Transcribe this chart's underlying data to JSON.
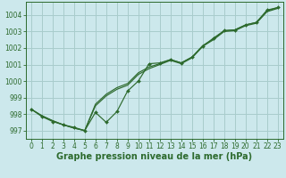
{
  "title": "Graphe pression niveau de la mer (hPa)",
  "background_color": "#cce8ec",
  "grid_color": "#a8cccc",
  "line_color": "#2d6a2d",
  "xlim": [
    -0.5,
    23.5
  ],
  "ylim": [
    996.5,
    1004.8
  ],
  "yticks": [
    997,
    998,
    999,
    1000,
    1001,
    1002,
    1003,
    1004
  ],
  "xticks": [
    0,
    1,
    2,
    3,
    4,
    5,
    6,
    7,
    8,
    9,
    10,
    11,
    12,
    13,
    14,
    15,
    16,
    17,
    18,
    19,
    20,
    21,
    22,
    23
  ],
  "line_smooth": {
    "x": [
      0,
      1,
      2,
      3,
      4,
      5,
      6,
      7,
      8,
      9,
      10,
      11,
      12,
      13,
      14,
      15,
      16,
      17,
      18,
      19,
      20,
      21,
      22,
      23
    ],
    "y": [
      998.3,
      997.9,
      997.6,
      997.35,
      997.15,
      997.0,
      998.6,
      999.2,
      999.6,
      999.85,
      1000.5,
      1000.85,
      1001.05,
      1001.3,
      1001.1,
      1001.45,
      1002.15,
      1002.55,
      1003.05,
      1003.1,
      1003.4,
      1003.55,
      1004.25,
      1004.45
    ]
  },
  "line_smooth2": {
    "x": [
      0,
      1,
      2,
      3,
      4,
      5,
      6,
      7,
      8,
      9,
      10,
      11,
      12,
      13,
      14,
      15,
      16,
      17,
      18,
      19,
      20,
      21,
      22,
      23
    ],
    "y": [
      998.3,
      997.9,
      997.6,
      997.35,
      997.15,
      997.0,
      998.5,
      999.1,
      999.5,
      999.75,
      1000.4,
      1000.75,
      1001.0,
      1001.25,
      1001.05,
      1001.4,
      1002.1,
      1002.5,
      1003.0,
      1003.05,
      1003.35,
      1003.5,
      1004.2,
      1004.4
    ]
  },
  "line_jagged": {
    "x": [
      0,
      1,
      2,
      3,
      4,
      5,
      6,
      7,
      8,
      9,
      10,
      11,
      12,
      13,
      14,
      15,
      16,
      17,
      18,
      19,
      20,
      21,
      22,
      23
    ],
    "y": [
      998.3,
      997.85,
      997.55,
      997.35,
      997.2,
      997.0,
      998.1,
      997.5,
      998.15,
      999.4,
      1000.0,
      1001.05,
      1001.1,
      1001.3,
      1001.1,
      1001.45,
      1002.1,
      1002.6,
      1003.05,
      1003.1,
      1003.4,
      1003.55,
      1004.3,
      1004.45
    ]
  },
  "tick_fontsize": 5.5,
  "title_fontsize": 7.0
}
